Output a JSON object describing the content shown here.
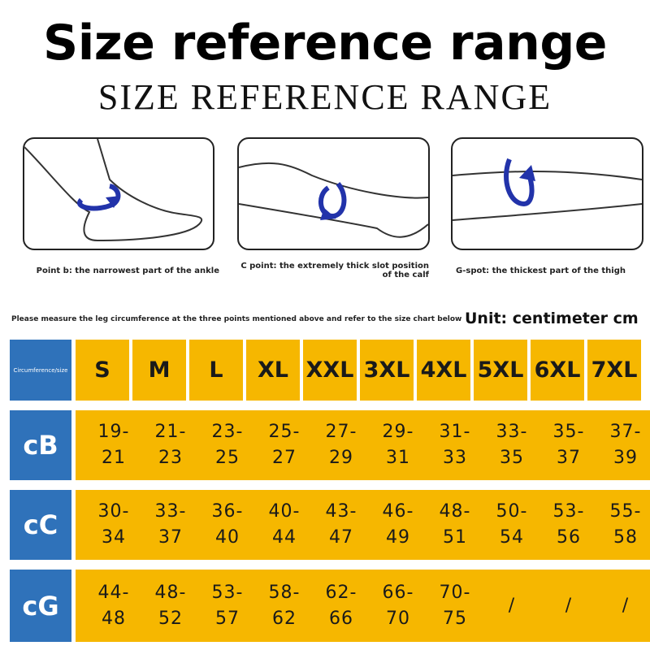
{
  "header": {
    "title": "Size reference range",
    "subtitle": "SIZE REFERENCE RANGE"
  },
  "figures": [
    {
      "caption": "Point b: the narrowest part of the ankle"
    },
    {
      "caption": "C point: the extremely thick slot position of the calf"
    },
    {
      "caption": "G-spot: the thickest part of the thigh"
    }
  ],
  "instruction": "Please measure the leg circumference at the three points mentioned above and refer to the size chart below",
  "unit": "Unit: centimeter cm",
  "table": {
    "corner": "Circumference/size",
    "sizes": [
      "S",
      "M",
      "L",
      "XL",
      "XXL",
      "3XL",
      "4XL",
      "5XL",
      "6XL",
      "7XL"
    ],
    "rows": [
      {
        "label": "cB",
        "cells": [
          "19-21",
          "21-23",
          "23-25",
          "25-27",
          "27-29",
          "29-31",
          "31-33",
          "33-35",
          "35-37",
          "37-39"
        ]
      },
      {
        "label": "cC",
        "cells": [
          "30-34",
          "33-37",
          "36-40",
          "40-44",
          "43-47",
          "46-49",
          "48-51",
          "50-54",
          "53-56",
          "55-58"
        ]
      },
      {
        "label": "cG",
        "cells": [
          "44-48",
          "48-52",
          "53-57",
          "58-62",
          "62-66",
          "66-70",
          "70-75",
          "/",
          "/",
          "/"
        ]
      }
    ]
  }
}
